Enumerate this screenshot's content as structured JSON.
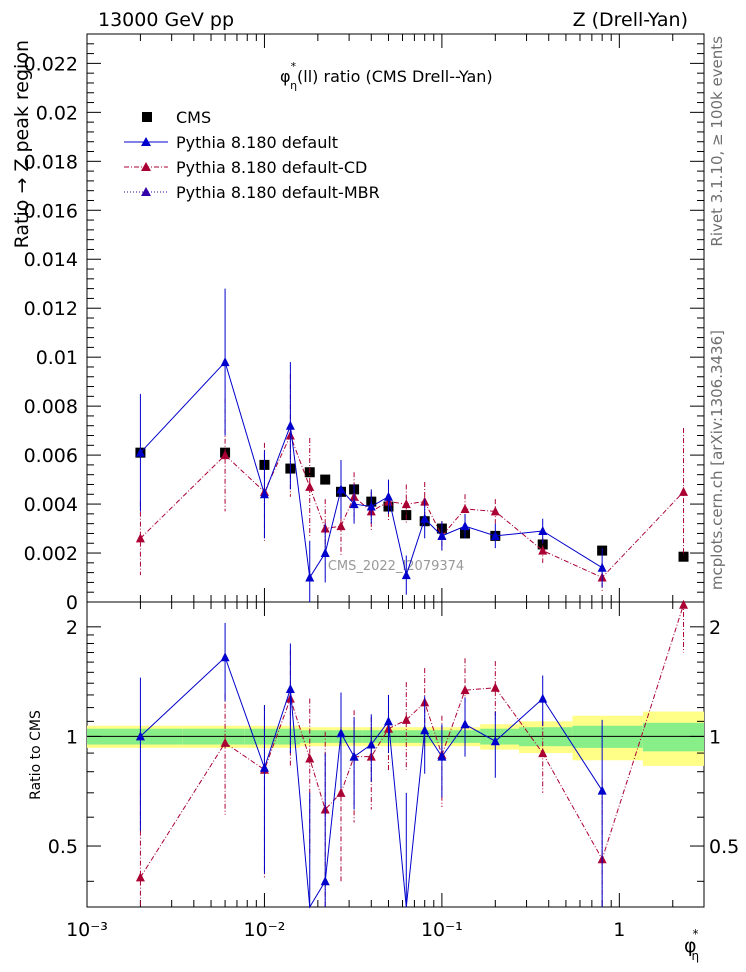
{
  "header": {
    "left": "13000 GeV pp",
    "right": "Z (Drell-Yan)"
  },
  "side_labels": {
    "rivet": "Rivet 3.1.10, ≥ 100k events",
    "mcplots": "mcplots.cern.ch [arXiv:1306.3436]"
  },
  "watermark": "CMS_2022_I2079374",
  "main_plot": {
    "title": "φ*η(ll) ratio (CMS Drell--Yan)",
    "ylabel": "Ratio → Z peak region",
    "ylim": [
      0,
      0.0232
    ],
    "yticks": [
      "0",
      "0.002",
      "0.004",
      "0.006",
      "0.008",
      "0.01",
      "0.012",
      "0.014",
      "0.016",
      "0.018",
      "0.02",
      "0.022"
    ]
  },
  "ratio_plot": {
    "ylabel": "Ratio to CMS",
    "ylim": [
      0.34,
      2.34
    ],
    "yticks": [
      "0.5",
      "1",
      "2"
    ]
  },
  "x_axis": {
    "label": "φ*η",
    "xlim": [
      0.001,
      3.0
    ],
    "ticks": [
      "10⁻³",
      "10⁻²",
      "10⁻¹",
      "1"
    ]
  },
  "colors": {
    "cms": "#000000",
    "pythia_default": "#0000cc",
    "pythia_cd": "#aa0033",
    "pythia_mbr": "#3300aa",
    "band_inner": "#88ee88",
    "band_outer": "#ffff88"
  },
  "chart_data": {
    "type": "scatter",
    "x": [
      0.002,
      0.006,
      0.01,
      0.014,
      0.018,
      0.022,
      0.027,
      0.032,
      0.04,
      0.05,
      0.063,
      0.08,
      0.1,
      0.135,
      0.2,
      0.37,
      0.8,
      2.3
    ],
    "series": [
      {
        "name": "CMS",
        "style": "marker-only",
        "values": [
          0.0061,
          0.0061,
          0.0056,
          0.00545,
          0.0053,
          0.005,
          0.0045,
          0.0046,
          0.0041,
          0.0039,
          0.00355,
          0.0033,
          0.003,
          0.0028,
          0.0027,
          0.00235,
          0.0021,
          0.00185
        ],
        "band_inner": [
          0.05,
          0.05,
          0.05,
          0.05,
          0.04,
          0.04,
          0.04,
          0.04,
          0.04,
          0.04,
          0.04,
          0.04,
          0.04,
          0.04,
          0.05,
          0.06,
          0.07,
          0.09
        ],
        "band_outer": [
          0.07,
          0.07,
          0.07,
          0.07,
          0.06,
          0.06,
          0.06,
          0.06,
          0.06,
          0.06,
          0.06,
          0.06,
          0.06,
          0.06,
          0.08,
          0.1,
          0.14,
          0.17
        ]
      },
      {
        "name": "Pythia 8.180 default",
        "style": "solid",
        "values": [
          0.0061,
          0.0098,
          0.0044,
          0.0072,
          0.001,
          0.002,
          0.0046,
          0.004,
          0.0039,
          0.0043,
          0.0011,
          0.0034,
          0.0027,
          0.0031,
          0.0027,
          0.0029,
          0.0014,
          null
        ],
        "errors": [
          0.0024,
          0.003,
          0.0018,
          0.0026,
          0.0015,
          0.0012,
          0.0012,
          0.0008,
          0.0007,
          0.0007,
          0.0008,
          0.0008,
          0.0006,
          0.0005,
          0.0005,
          0.0005,
          0.0008,
          null
        ],
        "ratio": [
          1.0,
          1.65,
          0.82,
          1.35,
          0.2,
          0.4,
          1.02,
          0.88,
          0.95,
          1.1,
          0.3,
          1.04,
          0.88,
          1.08,
          0.97,
          1.27,
          0.71,
          null
        ],
        "ratio_errors": [
          0.45,
          0.4,
          0.4,
          0.45,
          0.5,
          0.5,
          0.3,
          0.25,
          0.2,
          0.2,
          0.4,
          0.25,
          0.2,
          0.2,
          0.2,
          0.2,
          0.4,
          null
        ]
      },
      {
        "name": "Pythia 8.180 default-CD",
        "style": "dashdot",
        "values": [
          0.0026,
          0.006,
          0.0045,
          0.0068,
          0.0047,
          0.003,
          0.0031,
          0.0043,
          0.0037,
          0.0041,
          0.004,
          0.0041,
          0.0027,
          0.0038,
          0.0037,
          0.0021,
          0.001,
          0.0045
        ],
        "errors": [
          0.0015,
          0.0023,
          0.002,
          0.0025,
          0.002,
          0.0012,
          0.0012,
          0.001,
          0.0008,
          0.0008,
          0.0008,
          0.0008,
          0.0006,
          0.0006,
          0.0005,
          0.0005,
          0.0006,
          0.0026
        ],
        "ratio": [
          0.41,
          0.96,
          0.81,
          1.27,
          0.87,
          0.63,
          0.7,
          0.88,
          0.88,
          1.05,
          1.11,
          1.24,
          0.89,
          1.34,
          1.36,
          0.9,
          0.46,
          2.3
        ],
        "ratio_errors": [
          0.3,
          0.35,
          0.4,
          0.45,
          0.4,
          0.4,
          0.3,
          0.3,
          0.25,
          0.25,
          0.3,
          0.3,
          0.25,
          0.3,
          0.25,
          0.2,
          0.3,
          0.6
        ]
      },
      {
        "name": "Pythia 8.180 default-MBR",
        "style": "dotted",
        "values": [],
        "errors": [],
        "ratio": [],
        "ratio_errors": []
      }
    ]
  }
}
